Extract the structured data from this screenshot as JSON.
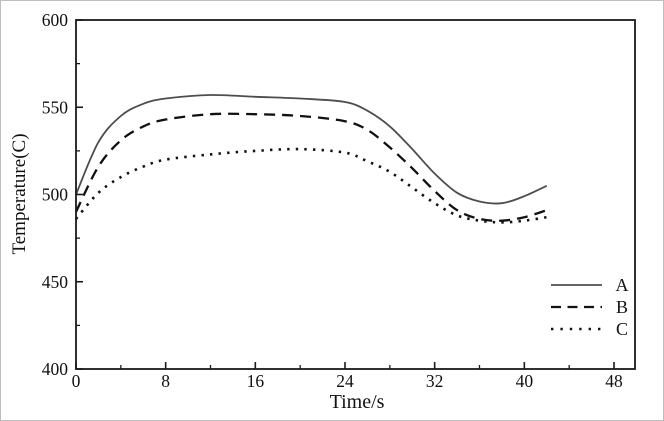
{
  "figure": {
    "background": "#ffffff",
    "border_color": "#bdbdbd",
    "text_color": "#111111",
    "axis_color": "#1a1a1a"
  },
  "chart_data": {
    "type": "line",
    "title": "",
    "xlabel": "Time/s",
    "ylabel": "Temperature(C)",
    "xlim": [
      0,
      50
    ],
    "ylim": [
      400,
      600
    ],
    "x_major_ticks": [
      0,
      8,
      16,
      24,
      32,
      40,
      48
    ],
    "x_minor_ticks": [
      4,
      12,
      20,
      28,
      36,
      44
    ],
    "y_major_ticks": [
      400,
      450,
      500,
      550,
      600
    ],
    "y_minor_ticks": [
      425,
      475,
      525,
      575
    ],
    "grid": false,
    "legend_position": "lower right",
    "x": [
      0,
      2,
      4,
      6,
      8,
      12,
      16,
      20,
      24,
      26,
      28,
      30,
      32,
      34,
      36,
      38,
      40,
      42
    ],
    "series": [
      {
        "name": "A",
        "style": "solid",
        "color": "#4d4d4d",
        "values": [
          500,
          530,
          545,
          552,
          555,
          557,
          556,
          555,
          553,
          548,
          539,
          526,
          512,
          501,
          496,
          495,
          499,
          505
        ]
      },
      {
        "name": "B",
        "style": "dashed",
        "color": "#111111",
        "values": [
          490,
          516,
          531,
          539,
          543,
          546,
          546,
          545,
          542,
          537,
          527,
          515,
          502,
          491,
          486,
          485,
          487,
          491
        ]
      },
      {
        "name": "C",
        "style": "dotted",
        "color": "#111111",
        "values": [
          486,
          501,
          510,
          516,
          520,
          523,
          525,
          526,
          524,
          519,
          513,
          504,
          495,
          488,
          485,
          484,
          485,
          487
        ]
      }
    ]
  }
}
